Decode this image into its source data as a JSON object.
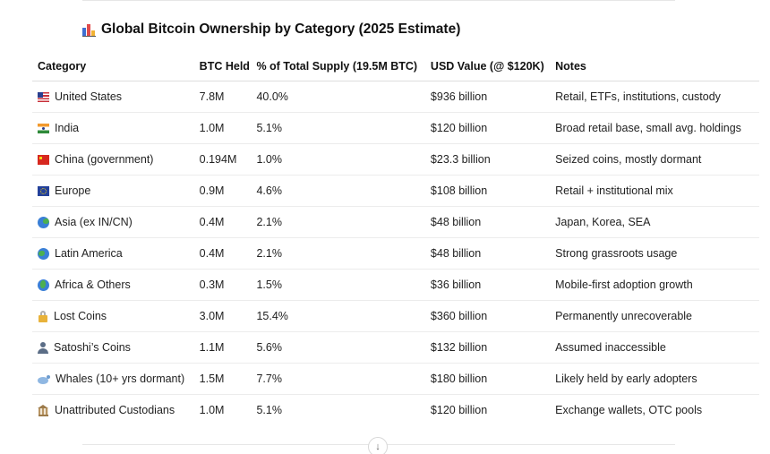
{
  "title": "Global Bitcoin Ownership by Category (2025 Estimate)",
  "title_icon": "bar-chart-icon",
  "table": {
    "headers": [
      "Category",
      "BTC Held",
      "% of Total Supply (19.5M BTC)",
      "USD Value (@ $120K)",
      "Notes"
    ],
    "rows": [
      {
        "icon": "us-flag-icon",
        "category": "United States",
        "btc": "7.8M",
        "pct": "40.0%",
        "usd": "$936 billion",
        "notes": "Retail, ETFs, institutions, custody"
      },
      {
        "icon": "india-flag-icon",
        "category": "India",
        "btc": "1.0M",
        "pct": "5.1%",
        "usd": "$120 billion",
        "notes": "Broad retail base, small avg. holdings"
      },
      {
        "icon": "china-flag-icon",
        "category": "China (government)",
        "btc": "0.194M",
        "pct": "1.0%",
        "usd": "$23.3 billion",
        "notes": "Seized coins, mostly dormant"
      },
      {
        "icon": "eu-flag-icon",
        "category": "Europe",
        "btc": "0.9M",
        "pct": "4.6%",
        "usd": "$108 billion",
        "notes": "Retail + institutional mix"
      },
      {
        "icon": "globe-asia-icon",
        "category": "Asia (ex IN/CN)",
        "btc": "0.4M",
        "pct": "2.1%",
        "usd": "$48 billion",
        "notes": "Japan, Korea, SEA"
      },
      {
        "icon": "globe-americas-icon",
        "category": "Latin America",
        "btc": "0.4M",
        "pct": "2.1%",
        "usd": "$48 billion",
        "notes": "Strong grassroots usage"
      },
      {
        "icon": "globe-africa-icon",
        "category": "Africa & Others",
        "btc": "0.3M",
        "pct": "1.5%",
        "usd": "$36 billion",
        "notes": "Mobile-first adoption growth"
      },
      {
        "icon": "lock-icon",
        "category": "Lost Coins",
        "btc": "3.0M",
        "pct": "15.4%",
        "usd": "$360 billion",
        "notes": "Permanently unrecoverable"
      },
      {
        "icon": "person-icon",
        "category": "Satoshi’s Coins",
        "btc": "1.1M",
        "pct": "5.6%",
        "usd": "$132 billion",
        "notes": "Assumed inaccessible"
      },
      {
        "icon": "whale-icon",
        "category": "Whales (10+ yrs dormant)",
        "btc": "1.5M",
        "pct": "7.7%",
        "usd": "$180 billion",
        "notes": "Likely held by early adopters"
      },
      {
        "icon": "bank-icon",
        "category": "Unattributed Custodians",
        "btc": "1.0M",
        "pct": "5.1%",
        "usd": "$120 billion",
        "notes": "Exchange wallets, OTC pools"
      }
    ]
  },
  "scroll_button_icon": "arrow-down-icon",
  "scroll_button_glyph": "↓"
}
